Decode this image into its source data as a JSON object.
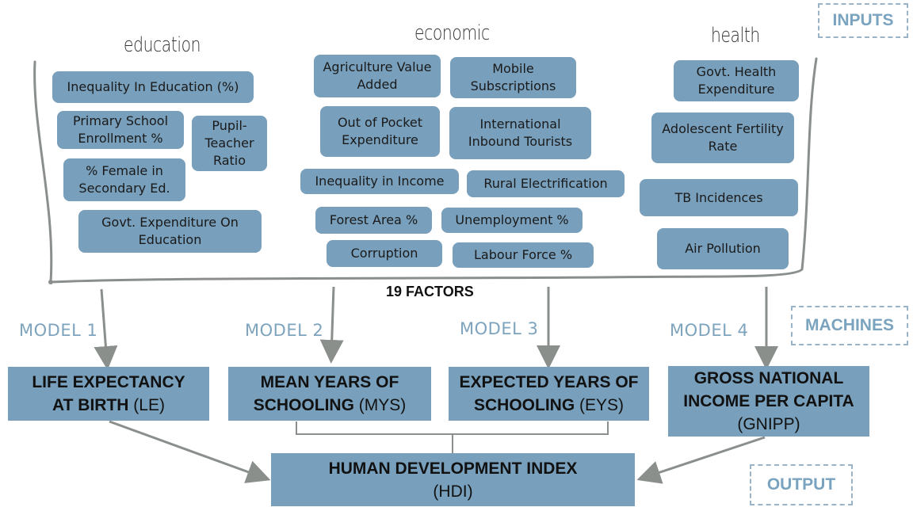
{
  "tags": {
    "inputs": "INPUTS",
    "machines": "MACHINES",
    "output": "OUTPUT"
  },
  "categories": {
    "education": "education",
    "economic": "economic",
    "health": "health"
  },
  "factors": {
    "education": [
      "Inequality In Education (%)",
      "Primary School Enrollment %",
      "Pupil-Teacher Ratio",
      "% Female in Secondary Ed.",
      "Govt. Expenditure On Education"
    ],
    "economic": [
      "Agriculture Value Added",
      "Mobile Subscriptions",
      "Out of Pocket Expenditure",
      "International Inbound Tourists",
      "Inequality in Income",
      "Rural Electrification",
      "Forest Area %",
      "Unemployment %",
      "Corruption",
      "Labour Force %"
    ],
    "health": [
      "Govt. Health Expenditure",
      "Adolescent Fertility Rate",
      "TB Incidences",
      "Air Pollution"
    ]
  },
  "factors_count_label": "19 FACTORS",
  "models": [
    "MODEL 1",
    "MODEL 2",
    "MODEL 3",
    "MODEL 4"
  ],
  "targets": [
    {
      "title_line1": "LIFE EXPECTANCY",
      "title_line2": "AT BIRTH",
      "abbr": "(LE)"
    },
    {
      "title_line1": "MEAN YEARS OF",
      "title_line2": "SCHOOLING",
      "abbr": "(MYS)"
    },
    {
      "title_line1": "EXPECTED YEARS OF",
      "title_line2": "SCHOOLING",
      "abbr": "(EYS)"
    },
    {
      "title_line1": "GROSS NATIONAL",
      "title_line2": "INCOME PER CAPITA",
      "abbr": "(GNIPP)"
    }
  ],
  "output": {
    "title": "HUMAN DEVELOPMENT INDEX",
    "abbr": "(HDI)"
  },
  "colors": {
    "box_fill": "#789fbb",
    "connector": "#8a8f8c",
    "tag_text": "#7aa3bf",
    "model_text": "#7ea3bd"
  }
}
